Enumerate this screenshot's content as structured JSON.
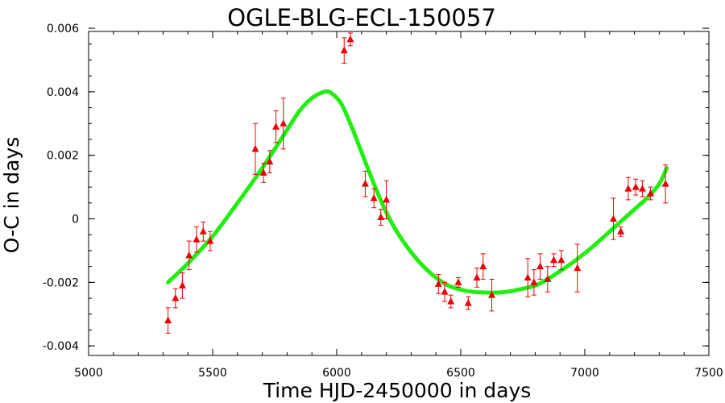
{
  "chart_data": {
    "type": "scatter",
    "title": "OGLE-BLG-ECL-150057",
    "xlabel": "Time HJD-2450000 in days",
    "ylabel": "O-C in days",
    "xlim": [
      5000,
      7500
    ],
    "ylim": [
      -0.0043,
      0.0059
    ],
    "x_ticks": [
      5000,
      5500,
      6000,
      6500,
      7000,
      7500
    ],
    "x_tick_labels": [
      "5000",
      "5500",
      "6000",
      "6500",
      "7000",
      "7500"
    ],
    "y_ticks": [
      -0.004,
      -0.002,
      0,
      0.002,
      0.004,
      0.006
    ],
    "y_tick_labels": [
      "-0.004",
      "-0.002",
      "0",
      "0.002",
      "0.004",
      "0.006"
    ],
    "grid": false,
    "legend": false,
    "colors": {
      "points": "#ee0000",
      "fit": "#22ee11",
      "axes": "#000000"
    },
    "series": [
      {
        "kind": "points_with_errorbars",
        "x": [
          5320,
          5350,
          5378,
          5405,
          5435,
          5462,
          5490,
          5672,
          5705,
          5730,
          5755,
          5785,
          6030,
          6055,
          6115,
          6150,
          6178,
          6200,
          6410,
          6435,
          6460,
          6490,
          6530,
          6565,
          6590,
          6625,
          6770,
          6795,
          6820,
          6850,
          6875,
          6905,
          6970,
          7115,
          7145,
          7175,
          7205,
          7232,
          7265,
          7325
        ],
        "y": [
          -0.0032,
          -0.0025,
          -0.0021,
          -0.00115,
          -0.00065,
          -0.0004,
          -0.0007,
          0.0022,
          0.00145,
          0.0018,
          0.0029,
          0.003,
          0.0053,
          0.00565,
          0.0011,
          0.00065,
          5e-05,
          0.0006,
          -0.00205,
          -0.0023,
          -0.0026,
          -0.002,
          -0.00265,
          -0.00185,
          -0.0015,
          -0.0024,
          -0.00185,
          -0.002,
          -0.0015,
          -0.0019,
          -0.0013,
          -0.0013,
          -0.00155,
          0.0,
          -0.0004,
          0.00095,
          0.001,
          0.00095,
          0.0008,
          0.0011
        ],
        "err": [
          0.0004,
          0.0003,
          0.0004,
          0.00045,
          0.0004,
          0.0003,
          0.0003,
          0.0008,
          0.0003,
          0.00035,
          0.0005,
          0.0008,
          0.0004,
          0.0002,
          0.0004,
          0.0003,
          0.00025,
          0.0006,
          0.0003,
          0.0003,
          0.0002,
          0.00015,
          0.0002,
          0.0003,
          0.0004,
          0.0005,
          0.0006,
          0.0004,
          0.0004,
          0.0004,
          0.0002,
          0.0003,
          0.00075,
          0.00065,
          0.00015,
          0.00035,
          0.00025,
          0.00025,
          0.0002,
          0.0006
        ]
      },
      {
        "kind": "fit_curve",
        "x": [
          5320,
          5400,
          5500,
          5600,
          5700,
          5800,
          5850,
          5900,
          5950,
          5980,
          6020,
          6060,
          6100,
          6150,
          6200,
          6250,
          6300,
          6350,
          6400,
          6450,
          6500,
          6550,
          6600,
          6650,
          6700,
          6750,
          6800,
          6850,
          6900,
          6950,
          7000,
          7050,
          7100,
          7150,
          7200,
          7250,
          7300,
          7330
        ],
        "y": [
          -0.002,
          -0.0014,
          -0.00055,
          0.0005,
          0.0016,
          0.0028,
          0.0034,
          0.0038,
          0.004,
          0.00395,
          0.0036,
          0.0029,
          0.0021,
          0.0011,
          0.0002,
          -0.0005,
          -0.00105,
          -0.0015,
          -0.00185,
          -0.0021,
          -0.00223,
          -0.0023,
          -0.00232,
          -0.00232,
          -0.00228,
          -0.0022,
          -0.0021,
          -0.0019,
          -0.00165,
          -0.00138,
          -0.00108,
          -0.00075,
          -0.0004,
          -5e-05,
          0.0003,
          0.00065,
          0.0011,
          0.0016
        ]
      }
    ]
  }
}
